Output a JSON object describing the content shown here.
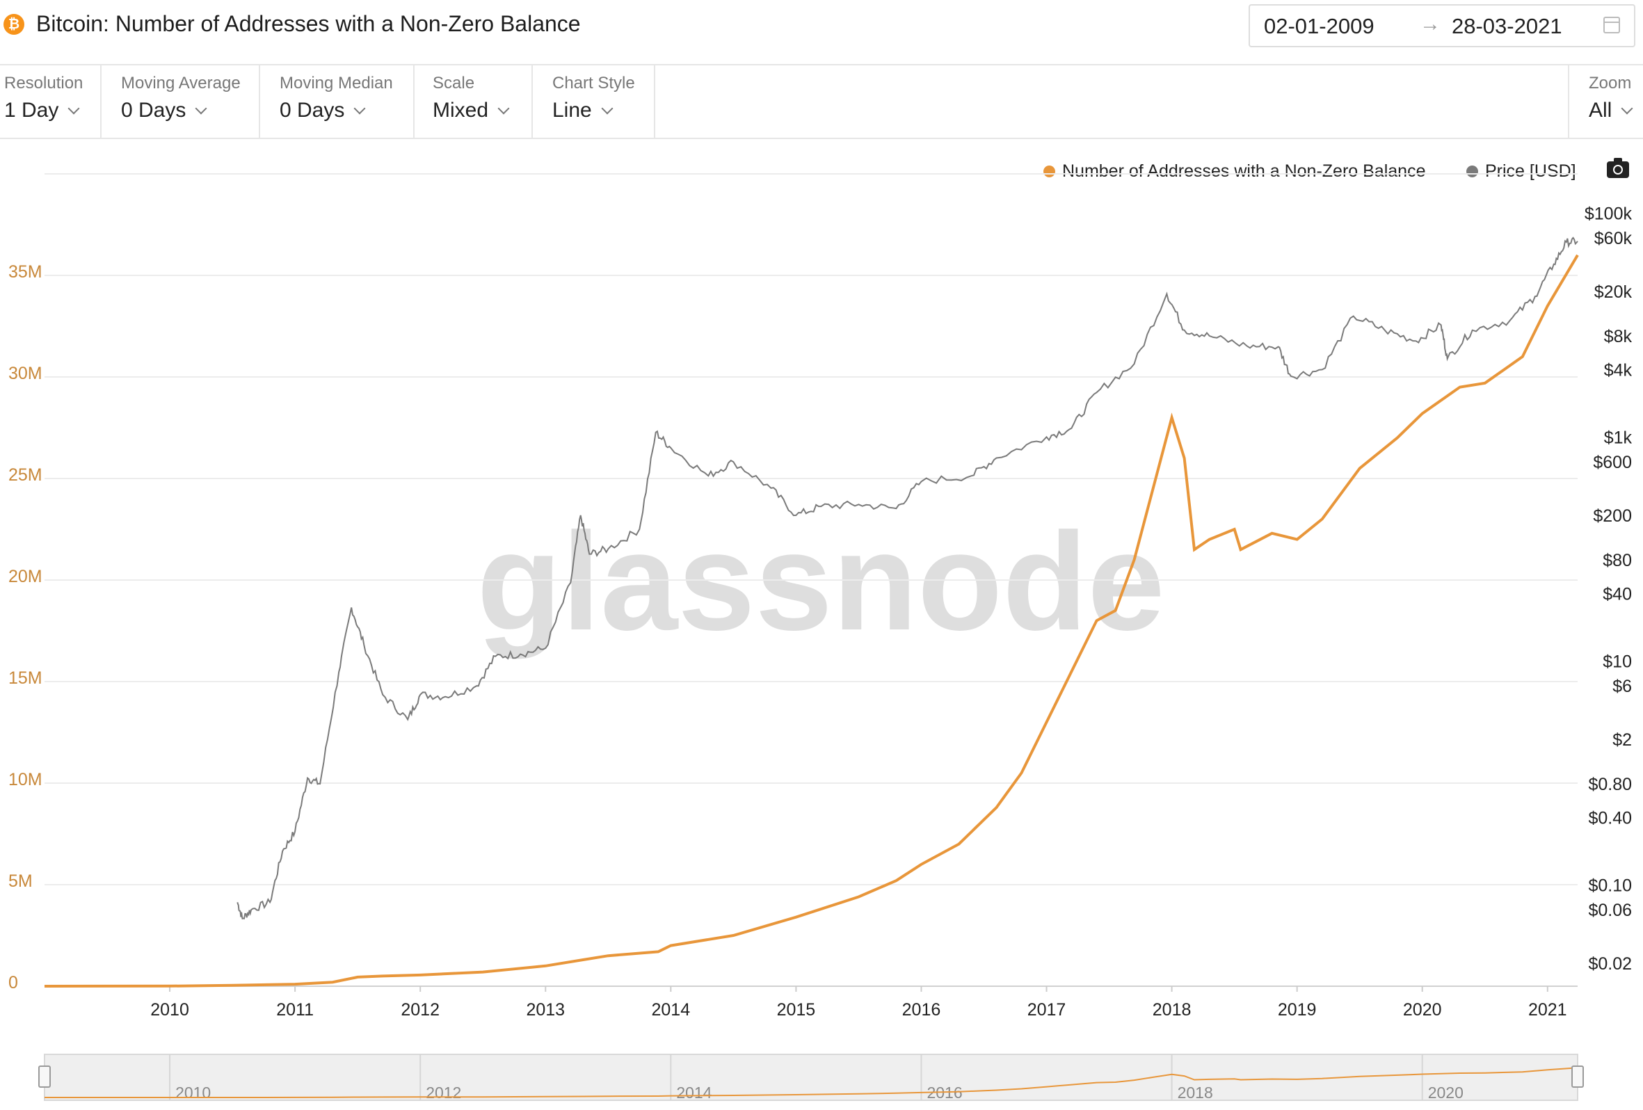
{
  "header": {
    "coin_icon_glyph": "₿",
    "title": "Bitcoin: Number of Addresses with a Non-Zero Balance",
    "date_from": "02-01-2009",
    "date_arrow": "→",
    "date_to": "28-03-2021",
    "calendar_icon": "calendar-icon"
  },
  "controls": {
    "resolution": {
      "label": "Resolution",
      "value": "1 Day"
    },
    "moving_average": {
      "label": "Moving Average",
      "value": "0 Days"
    },
    "moving_median": {
      "label": "Moving Median",
      "value": "0 Days"
    },
    "scale": {
      "label": "Scale",
      "value": "Mixed"
    },
    "chart_style": {
      "label": "Chart Style",
      "value": "Line"
    },
    "zoom": {
      "label": "Zoom",
      "value": "All"
    }
  },
  "legend": {
    "series_1": "Number of Addresses with a Non-Zero Balance",
    "series_2": "Price [USD]",
    "camera_icon": "camera-icon"
  },
  "watermark": "glassnode",
  "colors": {
    "addresses": "#e8963a",
    "price": "#7a7a7a",
    "grid": "#ececec"
  },
  "chart_data": {
    "type": "line",
    "x_ticks": [
      "2010",
      "2011",
      "2012",
      "2013",
      "2014",
      "2015",
      "2016",
      "2017",
      "2018",
      "2019",
      "2020",
      "2021"
    ],
    "x_range": [
      2009.0,
      2021.24
    ],
    "y_left": {
      "range": [
        0,
        40000000
      ],
      "ticks": [
        0,
        5000000,
        10000000,
        15000000,
        20000000,
        25000000,
        30000000,
        35000000
      ],
      "tick_labels": [
        "0",
        "5M",
        "10M",
        "15M",
        "20M",
        "25M",
        "30M",
        "35M"
      ]
    },
    "y_right": {
      "scale": "log",
      "range": [
        0.015,
        130000
      ],
      "ticks": [
        0.02,
        0.06,
        0.1,
        0.4,
        0.8,
        2,
        6,
        10,
        40,
        80,
        200,
        600,
        1000,
        4000,
        8000,
        20000,
        60000,
        100000
      ],
      "tick_labels": [
        "$0.02",
        "$0.06",
        "$0.10",
        "$0.40",
        "$0.80",
        "$2",
        "$6",
        "$10",
        "$40",
        "$80",
        "$200",
        "$600",
        "$1k",
        "$4k",
        "$8k",
        "$20k",
        "$60k",
        "$100k"
      ]
    },
    "series": [
      {
        "name": "Number of Addresses with a Non-Zero Balance",
        "axis": "left",
        "points": [
          [
            2009.0,
            0
          ],
          [
            2010.0,
            8000
          ],
          [
            2010.5,
            40000
          ],
          [
            2011.0,
            100000
          ],
          [
            2011.3,
            200000
          ],
          [
            2011.5,
            450000
          ],
          [
            2011.7,
            500000
          ],
          [
            2012.0,
            550000
          ],
          [
            2012.5,
            700000
          ],
          [
            2013.0,
            1000000
          ],
          [
            2013.3,
            1300000
          ],
          [
            2013.5,
            1500000
          ],
          [
            2013.9,
            1700000
          ],
          [
            2014.0,
            2000000
          ],
          [
            2014.5,
            2500000
          ],
          [
            2015.0,
            3400000
          ],
          [
            2015.5,
            4400000
          ],
          [
            2015.8,
            5200000
          ],
          [
            2016.0,
            6000000
          ],
          [
            2016.3,
            7000000
          ],
          [
            2016.6,
            8800000
          ],
          [
            2016.8,
            10500000
          ],
          [
            2017.0,
            13000000
          ],
          [
            2017.2,
            15500000
          ],
          [
            2017.4,
            18000000
          ],
          [
            2017.55,
            18500000
          ],
          [
            2017.7,
            21000000
          ],
          [
            2017.85,
            24500000
          ],
          [
            2018.0,
            28000000
          ],
          [
            2018.1,
            26000000
          ],
          [
            2018.18,
            21500000
          ],
          [
            2018.3,
            22000000
          ],
          [
            2018.5,
            22500000
          ],
          [
            2018.55,
            21500000
          ],
          [
            2018.8,
            22300000
          ],
          [
            2019.0,
            22000000
          ],
          [
            2019.2,
            23000000
          ],
          [
            2019.5,
            25500000
          ],
          [
            2019.8,
            27000000
          ],
          [
            2020.0,
            28200000
          ],
          [
            2020.3,
            29500000
          ],
          [
            2020.5,
            29700000
          ],
          [
            2020.8,
            31000000
          ],
          [
            2021.0,
            33500000
          ],
          [
            2021.24,
            36000000
          ]
        ]
      },
      {
        "name": "Price [USD]",
        "axis": "right",
        "points": [
          [
            2010.54,
            0.07
          ],
          [
            2010.58,
            0.05
          ],
          [
            2010.65,
            0.06
          ],
          [
            2010.8,
            0.07
          ],
          [
            2010.9,
            0.2
          ],
          [
            2011.0,
            0.3
          ],
          [
            2011.1,
            0.9
          ],
          [
            2011.2,
            0.8
          ],
          [
            2011.35,
            8
          ],
          [
            2011.45,
            30
          ],
          [
            2011.55,
            14
          ],
          [
            2011.7,
            5
          ],
          [
            2011.9,
            3
          ],
          [
            2012.0,
            5
          ],
          [
            2012.2,
            4.8
          ],
          [
            2012.45,
            6
          ],
          [
            2012.6,
            11
          ],
          [
            2012.8,
            11.5
          ],
          [
            2013.0,
            13
          ],
          [
            2013.2,
            50
          ],
          [
            2013.28,
            200
          ],
          [
            2013.35,
            90
          ],
          [
            2013.5,
            100
          ],
          [
            2013.75,
            150
          ],
          [
            2013.88,
            1100
          ],
          [
            2014.0,
            800
          ],
          [
            2014.3,
            450
          ],
          [
            2014.5,
            600
          ],
          [
            2014.8,
            350
          ],
          [
            2015.0,
            200
          ],
          [
            2015.2,
            240
          ],
          [
            2015.5,
            250
          ],
          [
            2015.8,
            230
          ],
          [
            2016.0,
            400
          ],
          [
            2016.4,
            450
          ],
          [
            2016.6,
            650
          ],
          [
            2017.0,
            1000
          ],
          [
            2017.2,
            1200
          ],
          [
            2017.4,
            2500
          ],
          [
            2017.7,
            4500
          ],
          [
            2017.96,
            19000
          ],
          [
            2018.1,
            9000
          ],
          [
            2018.3,
            8000
          ],
          [
            2018.6,
            6500
          ],
          [
            2018.85,
            6400
          ],
          [
            2018.95,
            3500
          ],
          [
            2019.2,
            4000
          ],
          [
            2019.45,
            12000
          ],
          [
            2019.7,
            9000
          ],
          [
            2019.95,
            7200
          ],
          [
            2020.15,
            10000
          ],
          [
            2020.2,
            5000
          ],
          [
            2020.4,
            9000
          ],
          [
            2020.7,
            11000
          ],
          [
            2020.9,
            18000
          ],
          [
            2021.05,
            35000
          ],
          [
            2021.15,
            55000
          ],
          [
            2021.24,
            56000
          ]
        ]
      }
    ],
    "navigator": {
      "x_ticks": [
        "2010",
        "2012",
        "2014",
        "2016",
        "2018",
        "2020"
      ]
    }
  }
}
